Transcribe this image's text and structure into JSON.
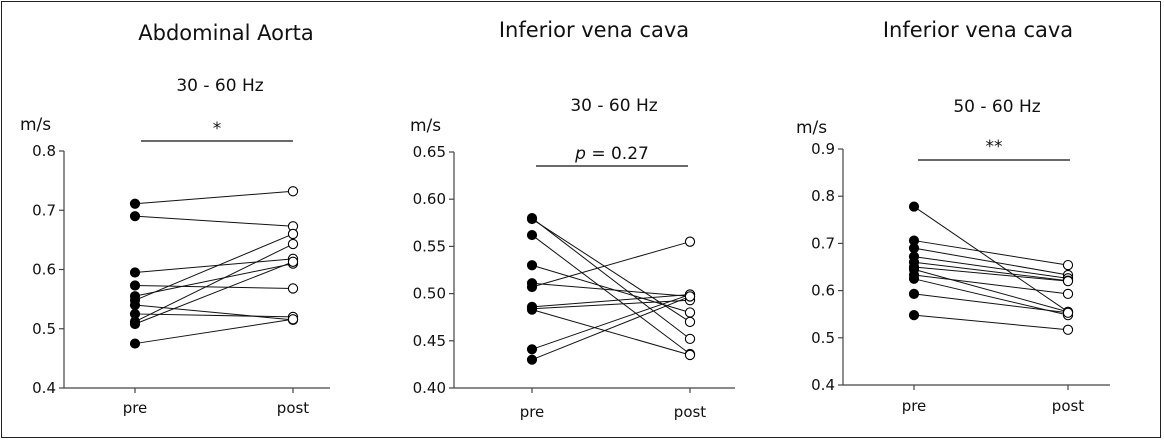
{
  "chart_data": [
    {
      "type": "line",
      "title": "Abdominal Aorta",
      "subtitle": "30  -  60 Hz",
      "significance": "*",
      "ylabel": "m/s",
      "ylim": [
        0.4,
        0.8
      ],
      "yticks": [
        "0.4",
        "0.5",
        "0.6",
        "0.7",
        "0.8"
      ],
      "categories": [
        "pre",
        "post"
      ],
      "series": [
        {
          "values": [
            0.711,
            0.732
          ]
        },
        {
          "values": [
            0.69,
            0.673
          ]
        },
        {
          "values": [
            0.595,
            0.618
          ]
        },
        {
          "values": [
            0.573,
            0.568
          ]
        },
        {
          "values": [
            0.555,
            0.61
          ]
        },
        {
          "values": [
            0.548,
            0.66
          ]
        },
        {
          "values": [
            0.54,
            0.515
          ]
        },
        {
          "values": [
            0.525,
            0.52
          ]
        },
        {
          "values": [
            0.512,
            0.643
          ]
        },
        {
          "values": [
            0.508,
            0.613
          ]
        },
        {
          "values": [
            0.475,
            0.516
          ]
        }
      ]
    },
    {
      "type": "line",
      "title": "Inferior vena cava",
      "subtitle": "30  -  60 Hz",
      "significance_p": "p",
      "significance": " = 0.27",
      "ylabel": "m/s",
      "ylim": [
        0.4,
        0.65
      ],
      "yticks": [
        "0.40",
        "0.45",
        "0.50",
        "0.55",
        "0.60",
        "0.65"
      ],
      "categories": [
        "pre",
        "post"
      ],
      "series": [
        {
          "values": [
            0.58,
            0.452
          ]
        },
        {
          "values": [
            0.579,
            0.47
          ]
        },
        {
          "values": [
            0.562,
            0.436
          ]
        },
        {
          "values": [
            0.53,
            0.48
          ]
        },
        {
          "values": [
            0.511,
            0.497
          ]
        },
        {
          "values": [
            0.507,
            0.555
          ]
        },
        {
          "values": [
            0.486,
            0.499
          ]
        },
        {
          "values": [
            0.484,
            0.493
          ]
        },
        {
          "values": [
            0.483,
            0.435
          ]
        },
        {
          "values": [
            0.441,
            0.499
          ]
        },
        {
          "values": [
            0.43,
            0.497
          ]
        }
      ]
    },
    {
      "type": "line",
      "title": "Inferior vena cava",
      "subtitle": "50  - 60 Hz",
      "significance": "**",
      "ylabel": "m/s",
      "ylim": [
        0.4,
        0.9
      ],
      "yticks": [
        "0.4",
        "0.5",
        "0.6",
        "0.7",
        "0.8",
        "0.9"
      ],
      "categories": [
        "pre",
        "post"
      ],
      "series": [
        {
          "values": [
            0.778,
            0.555
          ]
        },
        {
          "values": [
            0.706,
            0.654
          ]
        },
        {
          "values": [
            0.69,
            0.633
          ]
        },
        {
          "values": [
            0.672,
            0.626
          ]
        },
        {
          "values": [
            0.66,
            0.621
          ]
        },
        {
          "values": [
            0.65,
            0.62
          ]
        },
        {
          "values": [
            0.645,
            0.555
          ]
        },
        {
          "values": [
            0.633,
            0.593
          ]
        },
        {
          "values": [
            0.625,
            0.548
          ]
        },
        {
          "values": [
            0.593,
            0.553
          ]
        },
        {
          "values": [
            0.548,
            0.517
          ]
        }
      ]
    }
  ]
}
